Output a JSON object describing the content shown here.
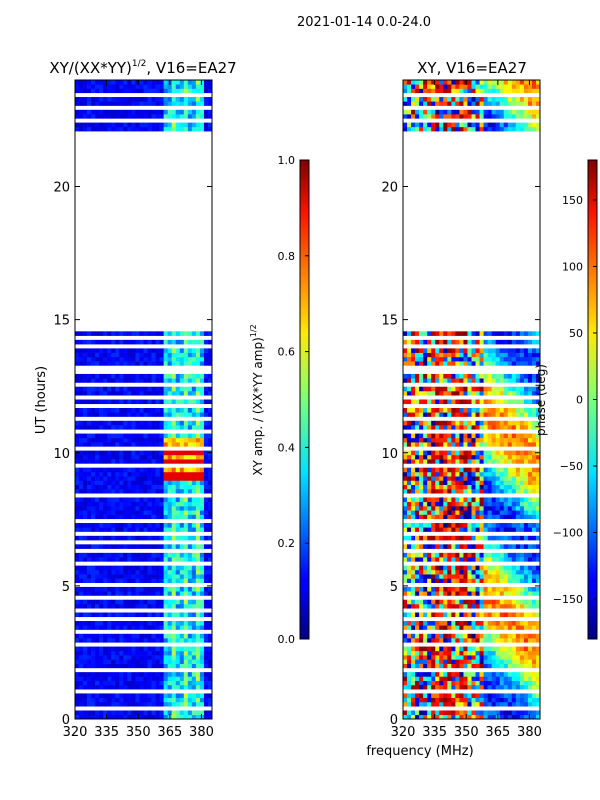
{
  "figure": {
    "suptitle": "2021-01-14 0.0-24.0",
    "shared_xlabel": "frequency (MHz)"
  },
  "chart_data": [
    {
      "type": "heatmap",
      "title_main": "XY/(XX*YY)",
      "title_exp": "1/2",
      "title_rest": ", V16=EA27",
      "xlabel": "",
      "ylabel": "UT (hours)",
      "xlim": [
        320,
        385
      ],
      "ylim": [
        0,
        24
      ],
      "xticks": [
        320,
        335,
        350,
        365,
        380
      ],
      "yticks": [
        0,
        5,
        10,
        15,
        20
      ],
      "colormap": "jet",
      "colorbar": {
        "label_main": "XY amp. / (XX*YY amp)",
        "label_exp": "1/2",
        "range": [
          0.0,
          1.0
        ],
        "ticks": [
          "0.0",
          "0.2",
          "0.4",
          "0.6",
          "0.8",
          "1.0"
        ],
        "tick_values": [
          0.0,
          0.2,
          0.4,
          0.6,
          0.8,
          1.0
        ]
      },
      "data_gaps_hours": [
        [
          14.8,
          22.1
        ],
        [
          13.0,
          13.3
        ]
      ],
      "bright_band_mhz": [
        363,
        382
      ],
      "peak_region": {
        "x": [
          363,
          381
        ],
        "y": [
          9.0,
          10.6
        ],
        "value": 0.9
      },
      "typical_value": 0.12
    },
    {
      "type": "heatmap",
      "title": "XY, V16=EA27",
      "xlabel": "",
      "ylabel": "",
      "xlim": [
        320,
        385
      ],
      "ylim": [
        0,
        24
      ],
      "xticks": [
        320,
        335,
        350,
        365,
        380
      ],
      "yticks": [
        0,
        5,
        10,
        15,
        20
      ],
      "colormap": "jet",
      "colorbar": {
        "label": "phase (deg)",
        "range": [
          -180,
          180
        ],
        "ticks": [
          "150",
          "100",
          "50",
          "0",
          "−50",
          "−100",
          "−150"
        ],
        "tick_values": [
          150,
          100,
          50,
          0,
          -50,
          -100,
          -150
        ]
      },
      "data_gaps_hours": [
        [
          14.8,
          22.1
        ],
        [
          13.0,
          13.3
        ]
      ]
    }
  ]
}
